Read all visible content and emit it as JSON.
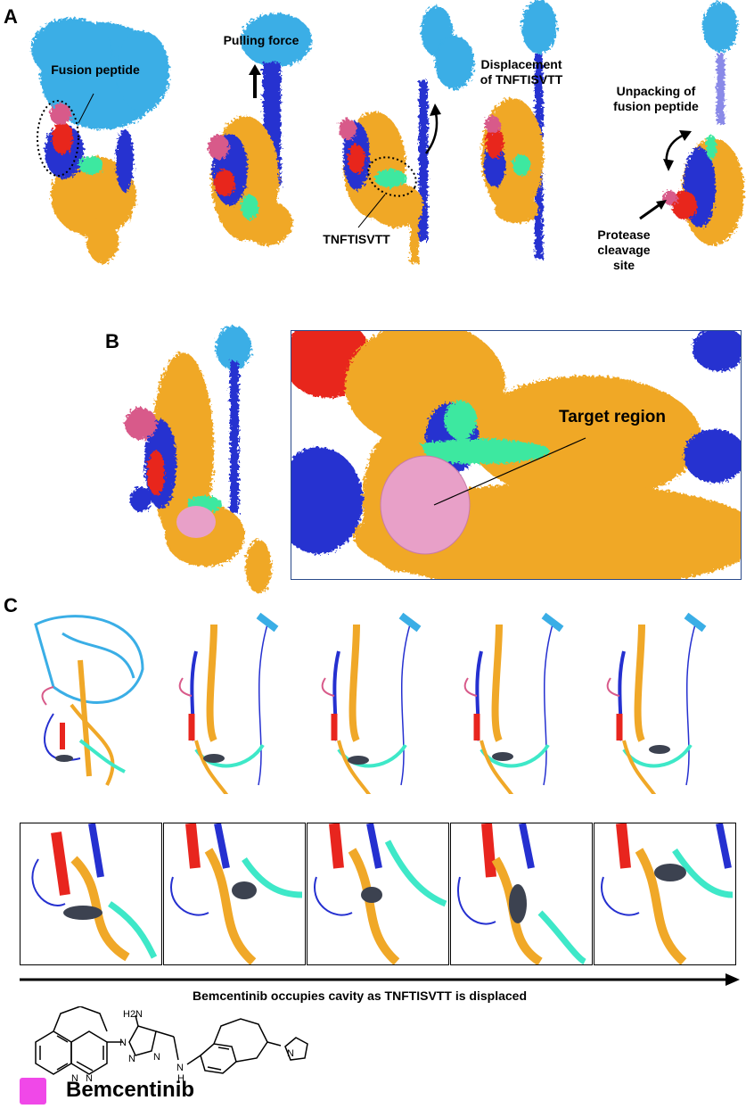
{
  "panels": {
    "a": {
      "letter": "A"
    },
    "b": {
      "letter": "B"
    },
    "c": {
      "letter": "C"
    }
  },
  "labels": {
    "fusion_peptide": "Fusion peptide",
    "pulling_force": "Pulling force",
    "tnftisvtt": "TNFTISVTT",
    "displacement": "Displacement of TNFTISVTT",
    "unpacking": "Unpacking of fusion peptide",
    "protease": "Protease cleavage site",
    "target_region": "Target region",
    "timeline": "Bemcentinib  occupies cavity as TNFTISVTT is displaced"
  },
  "legend": {
    "label": "Bemcentinib",
    "color": "#f048e8"
  },
  "molecule": {
    "nh2": "H2N",
    "n_labels": [
      "N",
      "N",
      "N",
      "N",
      "N",
      "N",
      "N"
    ],
    "nh": "N",
    "h": "H"
  },
  "colors": {
    "light_blue": "#3aaee6",
    "dark_blue": "#2530d0",
    "orange": "#f0a828",
    "red": "#e8251e",
    "mint": "#3ee8a0",
    "pink": "#d85a8a",
    "target": "#e8a0c8",
    "ligand": "#3c4250"
  }
}
